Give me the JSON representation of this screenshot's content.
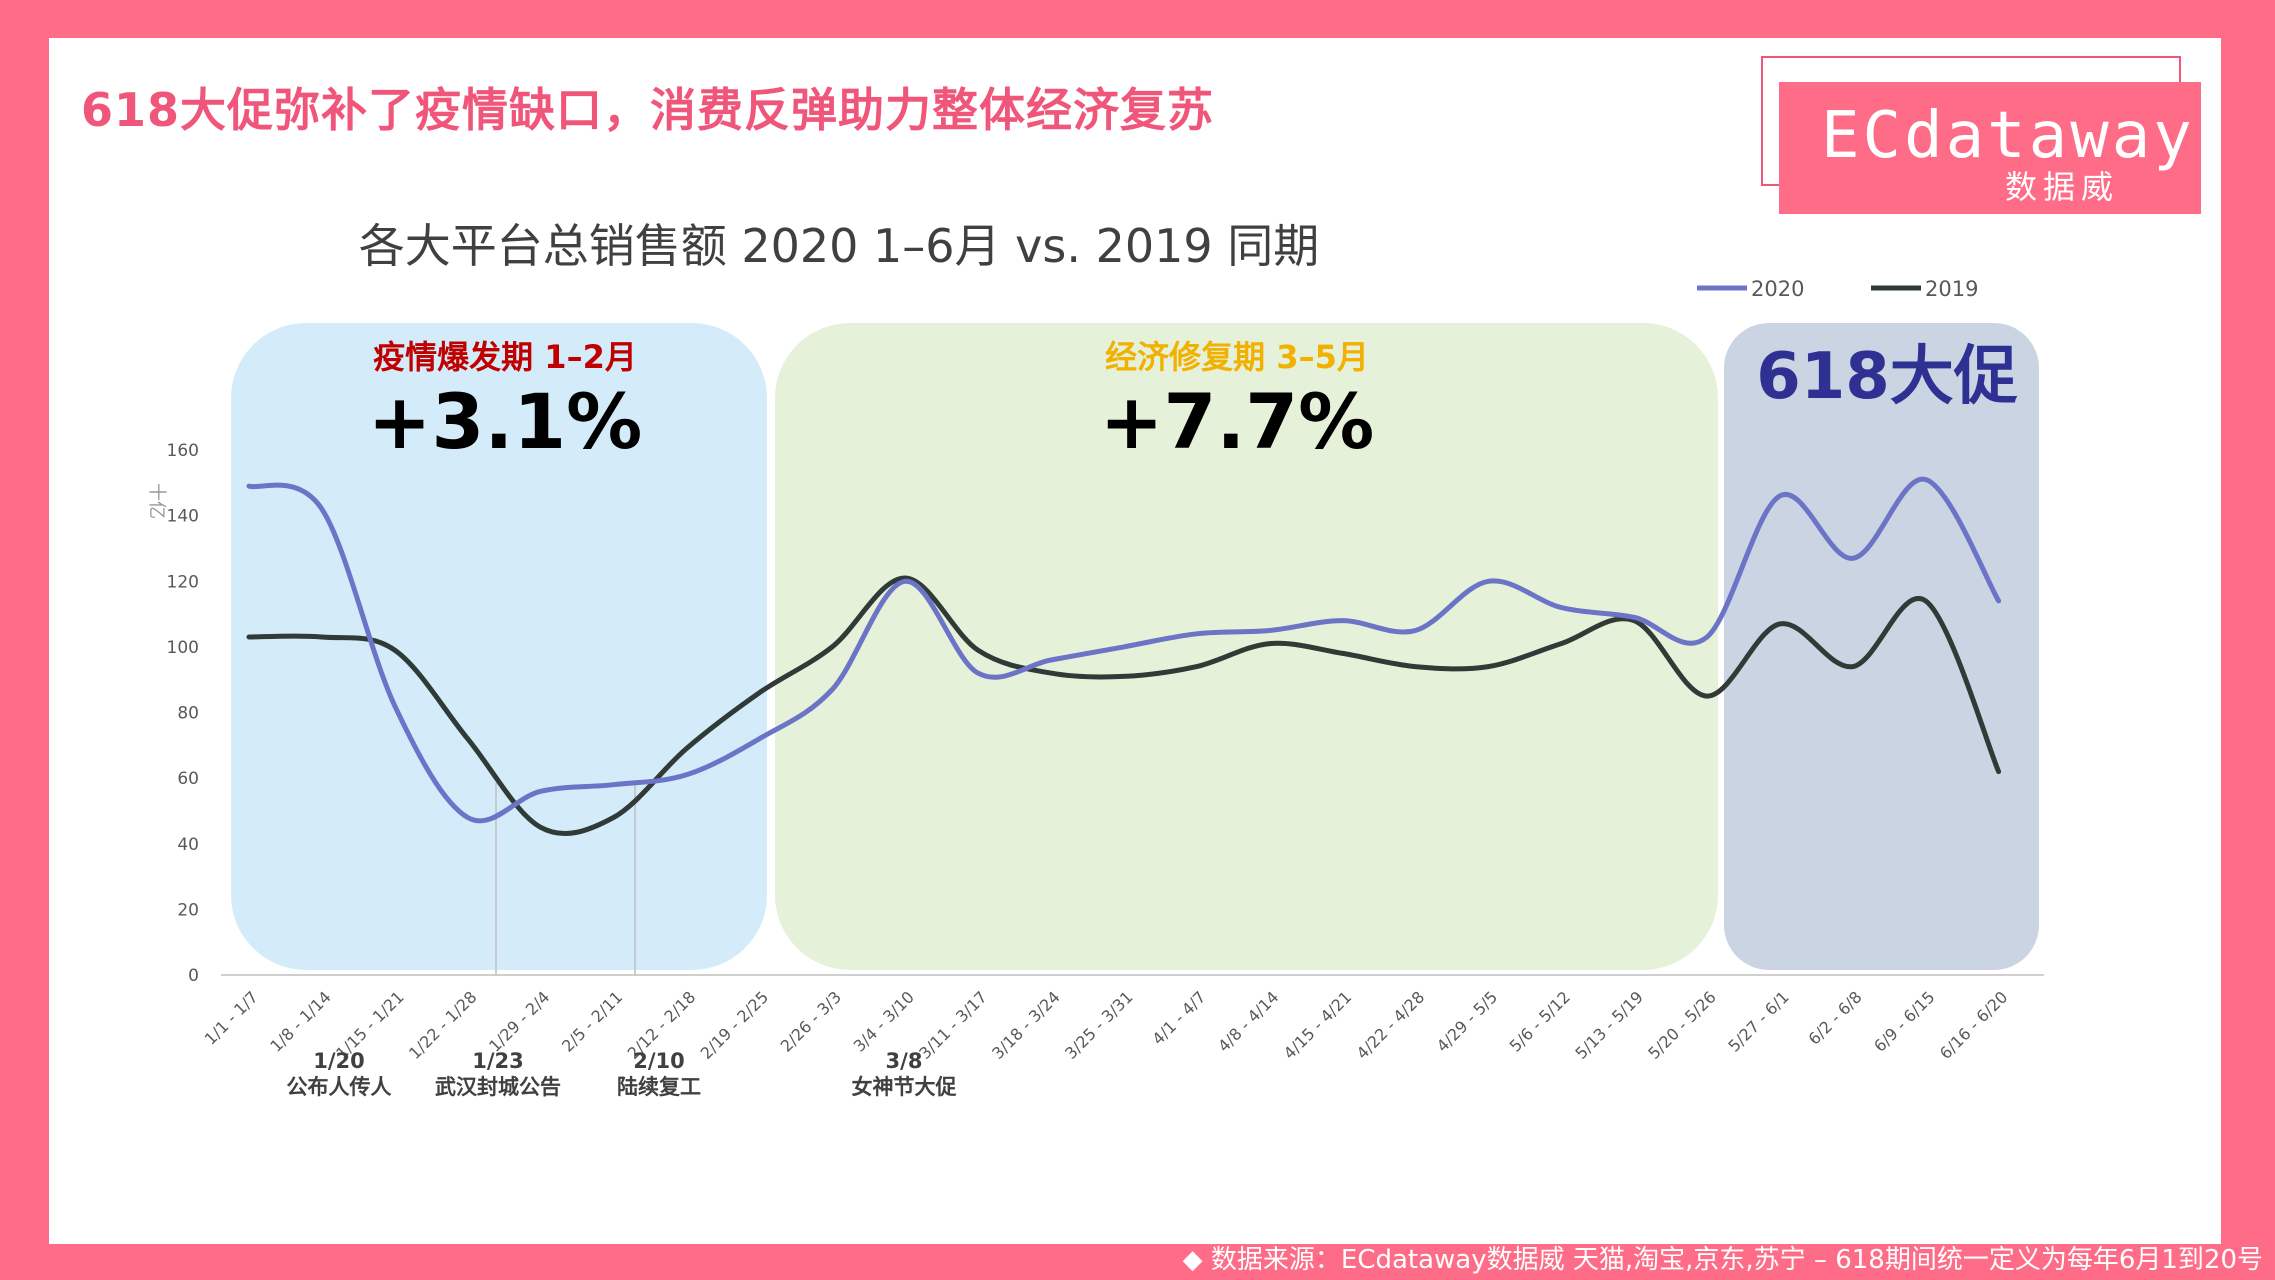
{
  "header": {
    "title": "618大促弥补了疫情缺口，消费反弹助力整体经济复苏"
  },
  "logo": {
    "name": "ECdataway",
    "subtitle": "数据威"
  },
  "footer": {
    "text": "◆ 数据来源：ECdataway数据威 天猫,淘宝,京东,苏宁 – 618期间统一定义为每年6月1到20号"
  },
  "colors": {
    "background": "#fe6c87",
    "accent": "#f0567a",
    "series_2020": "#6b74c6",
    "series_2019": "#303a36",
    "period1_fill": "#d4ecf9",
    "period2_fill": "#e5f1d8",
    "period3_fill": "#cbd4e2",
    "period1_label": "#c00000",
    "period2_label": "#f2b000",
    "period3_label": "#2e3192"
  },
  "chart_data": {
    "type": "line",
    "title": "各大平台总销售额 2020 1–6月 vs. 2019 同期",
    "ylabel": "十亿",
    "ylim": [
      0,
      160
    ],
    "yticks": [
      0,
      20,
      40,
      60,
      80,
      100,
      120,
      140,
      160
    ],
    "categories": [
      "1/1 - 1/7",
      "1/8 - 1/14",
      "1/15 - 1/21",
      "1/22 - 1/28",
      "1/29 - 2/4",
      "2/5 - 2/11",
      "2/12 - 2/18",
      "2/19 - 2/25",
      "2/26 - 3/3",
      "3/4 - 3/10",
      "3/11 - 3/17",
      "3/18 - 3/24",
      "3/25 - 3/31",
      "4/1 - 4/7",
      "4/8 - 4/14",
      "4/15 - 4/21",
      "4/22 - 4/28",
      "4/29 - 5/5",
      "5/6 - 5/12",
      "5/13 - 5/19",
      "5/20 - 5/26",
      "5/27 - 6/1",
      "6/2 - 6/8",
      "6/9 - 6/15",
      "6/16 - 6/20"
    ],
    "series": [
      {
        "name": "2020",
        "values": [
          149,
          142,
          82,
          48,
          56,
          58,
          61,
          72,
          87,
          120,
          92,
          96,
          100,
          104,
          105,
          108,
          105,
          120,
          112,
          109,
          103,
          146,
          127,
          151,
          114
        ]
      },
      {
        "name": "2019",
        "values": [
          103,
          103,
          99,
          72,
          45,
          48,
          69,
          86,
          100,
          121,
          99,
          92,
          91,
          94,
          101,
          98,
          94,
          94,
          101,
          108,
          85,
          107,
          94,
          114,
          62
        ]
      }
    ],
    "legend": "top-right",
    "grid": false,
    "periods": [
      {
        "label": "疫情爆发期 1–2月",
        "value": "+3.1%"
      },
      {
        "label": "经济修复期 3–5月",
        "value": "+7.7%"
      },
      {
        "label": "618大促",
        "value": ""
      }
    ],
    "annotations": [
      {
        "date": "1/20",
        "text": "公布人传人"
      },
      {
        "date": "1/23",
        "text": "武汉封城公告"
      },
      {
        "date": "2/10",
        "text": "陆续复工"
      },
      {
        "date": "3/8",
        "text": "女神节大促"
      }
    ]
  }
}
